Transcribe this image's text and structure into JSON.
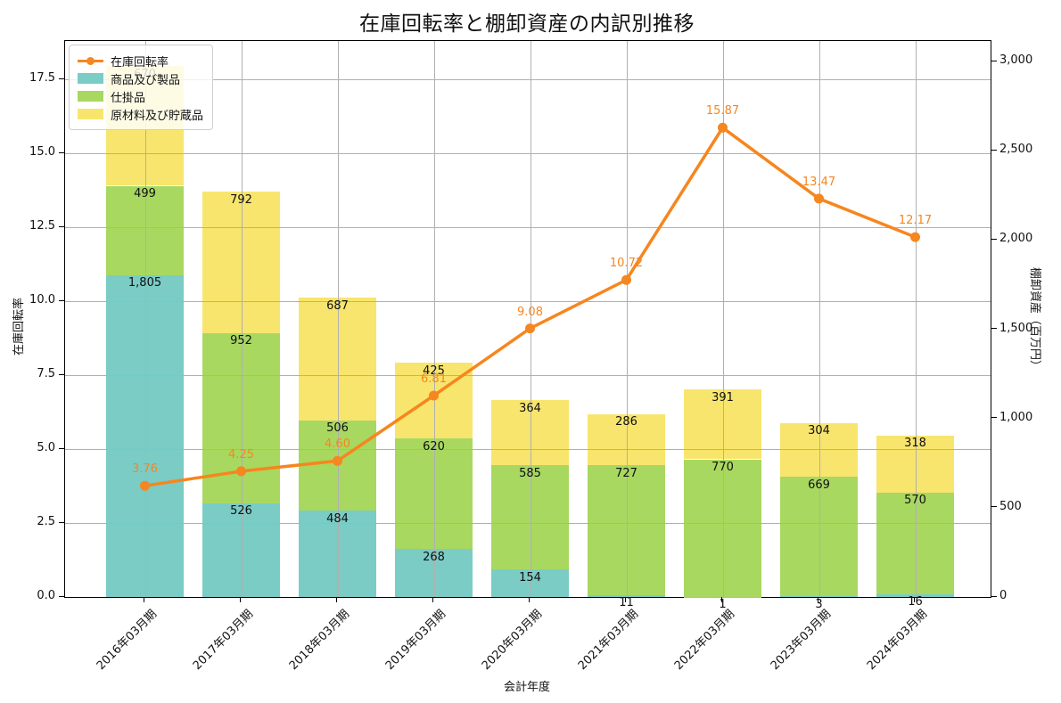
{
  "title": "在庫回転率と棚卸資産の内訳別推移",
  "colors": {
    "orange": "#f6861f",
    "teal": "#7accc5",
    "green": "#a8d860",
    "yellow": "#f8e56e",
    "grid": "#b0b0b0",
    "spine": "#000000"
  },
  "chart_data": {
    "type": "combo: stacked-bar (right axis) + line (left axis)",
    "title": "在庫回転率と棚卸資産の内訳別推移",
    "xlabel": "会計年度",
    "ylabel_left": "在庫回転率",
    "ylabel_right": "棚卸資産（百万円）",
    "categories": [
      "2016年03月期",
      "2017年03月期",
      "2018年03月期",
      "2019年03月期",
      "2020年03月期",
      "2021年03月期",
      "2022年03月期",
      "2023年03月期",
      "2024年03月期"
    ],
    "bar_series": [
      {
        "name": "商品及び製品",
        "color": "#7accc5",
        "values": [
          1805,
          526,
          484,
          268,
          154,
          11,
          1,
          3,
          16
        ]
      },
      {
        "name": "仕掛品",
        "color": "#a8d860",
        "values": [
          499,
          952,
          506,
          620,
          585,
          727,
          770,
          669,
          570
        ]
      },
      {
        "name": "原材料及び貯蔵品",
        "color": "#f8e56e",
        "values": [
          670,
          792,
          687,
          425,
          364,
          286,
          391,
          304,
          318
        ],
        "label_hidden_indices": [
          0
        ]
      }
    ],
    "line_series": {
      "name": "在庫回転率",
      "color": "#f6861f",
      "values": [
        3.76,
        4.25,
        4.6,
        6.81,
        9.08,
        10.72,
        15.87,
        13.47,
        12.17
      ]
    },
    "yticks_left": [
      0.0,
      2.5,
      5.0,
      7.5,
      10.0,
      12.5,
      15.0,
      17.5
    ],
    "ylim_left": [
      0,
      18.8
    ],
    "yticks_right": [
      0,
      500,
      1000,
      1500,
      2000,
      2500,
      3000
    ],
    "ylim_right": [
      0,
      3115
    ],
    "legend_position": "upper left",
    "legend_order": [
      "在庫回転率",
      "商品及び製品",
      "仕掛品",
      "原材料及び貯蔵品"
    ],
    "grid": true
  }
}
